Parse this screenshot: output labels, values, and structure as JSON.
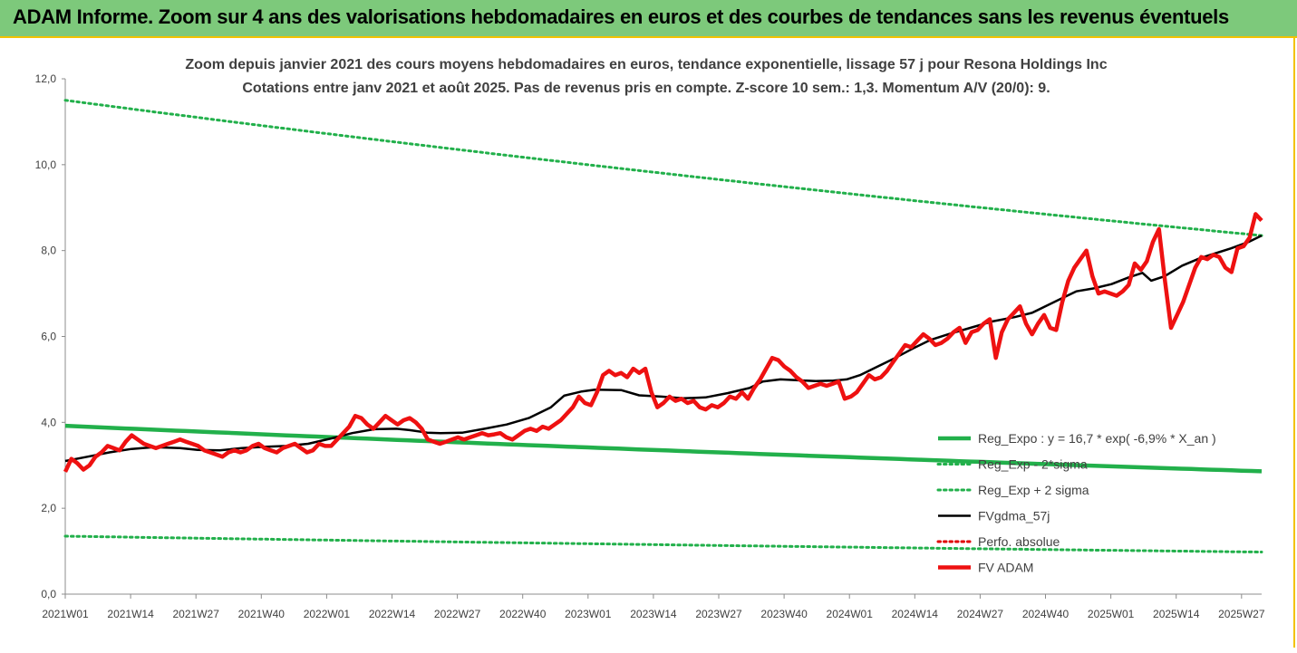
{
  "banner": {
    "title": "ADAM Informe. Zoom sur 4 ans des valorisations hebdomadaires en euros et des courbes de tendances sans les revenus éventuels"
  },
  "colors": {
    "banner_bg": "#7dc97b",
    "accent_border": "#f2c200",
    "reg_expo": "#22b04b",
    "reg_band": "#22b04b",
    "fv_gdma": "#000000",
    "perfo": "#e00000",
    "fv_adam": "#ee1111"
  },
  "chart_data": {
    "type": "line",
    "title": "Zoom depuis janvier 2021 des cours moyens hebdomadaires en euros, tendance exponentielle, lissage 57 j pour Resona Holdings Inc",
    "subtitle": "Cotations entre janv 2021 et août 2025.  Pas de revenus pris en compte. Z-score 10 sem.: 1,3. Momentum A/V (20/0): 9.",
    "xlabel": "",
    "ylabel": "",
    "ylim": [
      0,
      12
    ],
    "yticks": [
      "0,0",
      "2,0",
      "4,0",
      "6,0",
      "8,0",
      "10,0",
      "12,0"
    ],
    "x_tick_labels": [
      "2021W01",
      "2021W14",
      "2021W27",
      "2021W40",
      "2022W01",
      "2022W14",
      "2022W27",
      "2022W40",
      "2023W01",
      "2023W14",
      "2023W27",
      "2023W40",
      "2024W01",
      "2024W14",
      "2024W27",
      "2024W40",
      "2025W01",
      "2025W14",
      "2025W27"
    ],
    "n_weeks": 239,
    "grid": "none",
    "legend_position": "bottom-right",
    "series": [
      {
        "name": "Reg_Expo : y = 16,7 * exp( -6,9% *  X_an )",
        "style": "solid-thick",
        "color": "#22b04b",
        "kind": "exp",
        "start": 3.92,
        "end": 2.86
      },
      {
        "name": "Reg_Exp - 2*sigma",
        "style": "dotted",
        "color": "#22b04b",
        "kind": "exp",
        "start": 1.35,
        "end": 0.98
      },
      {
        "name": "Reg_Exp + 2 sigma",
        "style": "dotted",
        "color": "#22b04b",
        "kind": "exp",
        "start": 11.5,
        "end": 8.35
      },
      {
        "name": "FVgdma_57j",
        "style": "solid",
        "color": "#000000",
        "points": [
          [
            0,
            3.1
          ],
          [
            5,
            3.2
          ],
          [
            10,
            3.3
          ],
          [
            15,
            3.38
          ],
          [
            20,
            3.42
          ],
          [
            26,
            3.4
          ],
          [
            30,
            3.36
          ],
          [
            35,
            3.35
          ],
          [
            40,
            3.4
          ],
          [
            45,
            3.43
          ],
          [
            50,
            3.45
          ],
          [
            55,
            3.5
          ],
          [
            60,
            3.62
          ],
          [
            65,
            3.75
          ],
          [
            70,
            3.84
          ],
          [
            75,
            3.85
          ],
          [
            78,
            3.82
          ],
          [
            82,
            3.76
          ],
          [
            85,
            3.75
          ],
          [
            90,
            3.76
          ],
          [
            95,
            3.85
          ],
          [
            100,
            3.95
          ],
          [
            105,
            4.1
          ],
          [
            110,
            4.35
          ],
          [
            113,
            4.62
          ],
          [
            117,
            4.72
          ],
          [
            120,
            4.76
          ],
          [
            126,
            4.75
          ],
          [
            130,
            4.63
          ],
          [
            135,
            4.6
          ],
          [
            140,
            4.56
          ],
          [
            145,
            4.58
          ],
          [
            150,
            4.68
          ],
          [
            155,
            4.8
          ],
          [
            158,
            4.95
          ],
          [
            162,
            5.0
          ],
          [
            166,
            4.98
          ],
          [
            170,
            4.96
          ],
          [
            174,
            4.97
          ],
          [
            177,
            5.0
          ],
          [
            180,
            5.1
          ],
          [
            184,
            5.3
          ],
          [
            188,
            5.5
          ],
          [
            192,
            5.72
          ],
          [
            196,
            5.92
          ],
          [
            200,
            6.05
          ],
          [
            205,
            6.2
          ],
          [
            210,
            6.35
          ],
          [
            215,
            6.45
          ],
          [
            219,
            6.55
          ],
          [
            222,
            6.7
          ],
          [
            226,
            6.9
          ],
          [
            229,
            7.05
          ],
          [
            233,
            7.12
          ],
          [
            237,
            7.22
          ],
          [
            241,
            7.38
          ],
          [
            244,
            7.48
          ],
          [
            246,
            7.3
          ],
          [
            249,
            7.4
          ],
          [
            253,
            7.65
          ],
          [
            257,
            7.82
          ],
          [
            260,
            7.92
          ],
          [
            264,
            8.05
          ],
          [
            268,
            8.2
          ],
          [
            271,
            8.35
          ]
        ]
      },
      {
        "name": "Perfo. absolue",
        "style": "dotted",
        "color": "#e00000",
        "points": []
      },
      {
        "name": "FV ADAM",
        "style": "solid-thick",
        "color": "#ee1111",
        "points": [
          [
            0,
            2.85
          ],
          [
            1,
            3.15
          ],
          [
            2,
            3.05
          ],
          [
            3,
            2.9
          ],
          [
            4,
            3.0
          ],
          [
            5,
            3.2
          ],
          [
            6,
            3.3
          ],
          [
            7,
            3.45
          ],
          [
            8,
            3.4
          ],
          [
            9,
            3.35
          ],
          [
            10,
            3.55
          ],
          [
            11,
            3.7
          ],
          [
            12,
            3.6
          ],
          [
            13,
            3.5
          ],
          [
            14,
            3.45
          ],
          [
            15,
            3.4
          ],
          [
            16,
            3.45
          ],
          [
            17,
            3.5
          ],
          [
            18,
            3.55
          ],
          [
            19,
            3.6
          ],
          [
            20,
            3.55
          ],
          [
            21,
            3.5
          ],
          [
            22,
            3.45
          ],
          [
            23,
            3.35
          ],
          [
            24,
            3.3
          ],
          [
            25,
            3.25
          ],
          [
            26,
            3.2
          ],
          [
            27,
            3.3
          ],
          [
            28,
            3.35
          ],
          [
            29,
            3.3
          ],
          [
            30,
            3.35
          ],
          [
            31,
            3.45
          ],
          [
            32,
            3.5
          ],
          [
            33,
            3.4
          ],
          [
            34,
            3.35
          ],
          [
            35,
            3.3
          ],
          [
            36,
            3.4
          ],
          [
            37,
            3.45
          ],
          [
            38,
            3.5
          ],
          [
            39,
            3.4
          ],
          [
            40,
            3.3
          ],
          [
            41,
            3.35
          ],
          [
            42,
            3.5
          ],
          [
            43,
            3.45
          ],
          [
            44,
            3.45
          ],
          [
            45,
            3.6
          ],
          [
            46,
            3.75
          ],
          [
            47,
            3.9
          ],
          [
            48,
            4.15
          ],
          [
            49,
            4.1
          ],
          [
            50,
            3.95
          ],
          [
            51,
            3.85
          ],
          [
            52,
            4.0
          ],
          [
            53,
            4.15
          ],
          [
            54,
            4.05
          ],
          [
            55,
            3.95
          ],
          [
            56,
            4.05
          ],
          [
            57,
            4.1
          ],
          [
            58,
            4.0
          ],
          [
            59,
            3.85
          ],
          [
            60,
            3.6
          ],
          [
            61,
            3.55
          ],
          [
            62,
            3.5
          ],
          [
            63,
            3.55
          ],
          [
            64,
            3.6
          ],
          [
            65,
            3.65
          ],
          [
            66,
            3.6
          ],
          [
            67,
            3.65
          ],
          [
            68,
            3.7
          ],
          [
            69,
            3.75
          ],
          [
            70,
            3.7
          ],
          [
            71,
            3.72
          ],
          [
            72,
            3.75
          ],
          [
            73,
            3.65
          ],
          [
            74,
            3.6
          ],
          [
            75,
            3.7
          ],
          [
            76,
            3.8
          ],
          [
            77,
            3.85
          ],
          [
            78,
            3.8
          ],
          [
            79,
            3.9
          ],
          [
            80,
            3.85
          ],
          [
            81,
            3.95
          ],
          [
            82,
            4.05
          ],
          [
            83,
            4.2
          ],
          [
            84,
            4.35
          ],
          [
            85,
            4.6
          ],
          [
            86,
            4.45
          ],
          [
            87,
            4.4
          ],
          [
            88,
            4.7
          ],
          [
            89,
            5.1
          ],
          [
            90,
            5.2
          ],
          [
            91,
            5.1
          ],
          [
            92,
            5.15
          ],
          [
            93,
            5.05
          ],
          [
            94,
            5.25
          ],
          [
            95,
            5.15
          ],
          [
            96,
            5.25
          ],
          [
            97,
            4.7
          ],
          [
            98,
            4.35
          ],
          [
            99,
            4.45
          ],
          [
            100,
            4.6
          ],
          [
            101,
            4.5
          ],
          [
            102,
            4.55
          ],
          [
            103,
            4.45
          ],
          [
            104,
            4.5
          ],
          [
            105,
            4.35
          ],
          [
            106,
            4.3
          ],
          [
            107,
            4.4
          ],
          [
            108,
            4.35
          ],
          [
            109,
            4.45
          ],
          [
            110,
            4.6
          ],
          [
            111,
            4.55
          ],
          [
            112,
            4.7
          ],
          [
            113,
            4.55
          ],
          [
            114,
            4.8
          ],
          [
            115,
            5.0
          ],
          [
            116,
            5.25
          ],
          [
            117,
            5.5
          ],
          [
            118,
            5.45
          ],
          [
            119,
            5.3
          ],
          [
            120,
            5.2
          ],
          [
            121,
            5.05
          ],
          [
            122,
            4.95
          ],
          [
            123,
            4.8
          ],
          [
            124,
            4.85
          ],
          [
            125,
            4.9
          ],
          [
            126,
            4.85
          ],
          [
            127,
            4.9
          ],
          [
            128,
            4.95
          ],
          [
            129,
            4.55
          ],
          [
            130,
            4.6
          ],
          [
            131,
            4.7
          ],
          [
            132,
            4.9
          ],
          [
            133,
            5.1
          ],
          [
            134,
            5.0
          ],
          [
            135,
            5.05
          ],
          [
            136,
            5.2
          ],
          [
            137,
            5.4
          ],
          [
            138,
            5.6
          ],
          [
            139,
            5.8
          ],
          [
            140,
            5.75
          ],
          [
            141,
            5.9
          ],
          [
            142,
            6.05
          ],
          [
            143,
            5.95
          ],
          [
            144,
            5.8
          ],
          [
            145,
            5.85
          ],
          [
            146,
            5.95
          ],
          [
            147,
            6.1
          ],
          [
            148,
            6.2
          ],
          [
            149,
            5.85
          ],
          [
            150,
            6.1
          ],
          [
            151,
            6.15
          ],
          [
            152,
            6.3
          ],
          [
            153,
            6.4
          ],
          [
            154,
            5.5
          ],
          [
            155,
            6.1
          ],
          [
            156,
            6.4
          ],
          [
            157,
            6.55
          ],
          [
            158,
            6.7
          ],
          [
            159,
            6.3
          ],
          [
            160,
            6.05
          ],
          [
            161,
            6.3
          ],
          [
            162,
            6.5
          ],
          [
            163,
            6.2
          ],
          [
            164,
            6.15
          ],
          [
            165,
            6.8
          ],
          [
            166,
            7.3
          ],
          [
            167,
            7.6
          ],
          [
            168,
            7.8
          ],
          [
            169,
            8.0
          ],
          [
            170,
            7.4
          ],
          [
            171,
            7.0
          ],
          [
            172,
            7.05
          ],
          [
            173,
            7.0
          ],
          [
            174,
            6.95
          ],
          [
            175,
            7.05
          ],
          [
            176,
            7.2
          ],
          [
            177,
            7.7
          ],
          [
            178,
            7.55
          ],
          [
            179,
            7.75
          ],
          [
            180,
            8.2
          ],
          [
            181,
            8.5
          ],
          [
            182,
            7.3
          ],
          [
            183,
            6.2
          ],
          [
            184,
            6.5
          ],
          [
            185,
            6.8
          ],
          [
            186,
            7.2
          ],
          [
            187,
            7.6
          ],
          [
            188,
            7.85
          ],
          [
            189,
            7.8
          ],
          [
            190,
            7.9
          ],
          [
            191,
            7.85
          ],
          [
            192,
            7.6
          ],
          [
            193,
            7.5
          ],
          [
            194,
            8.05
          ],
          [
            195,
            8.1
          ],
          [
            196,
            8.3
          ],
          [
            197,
            8.85
          ],
          [
            198,
            8.7
          ]
        ]
      }
    ]
  }
}
